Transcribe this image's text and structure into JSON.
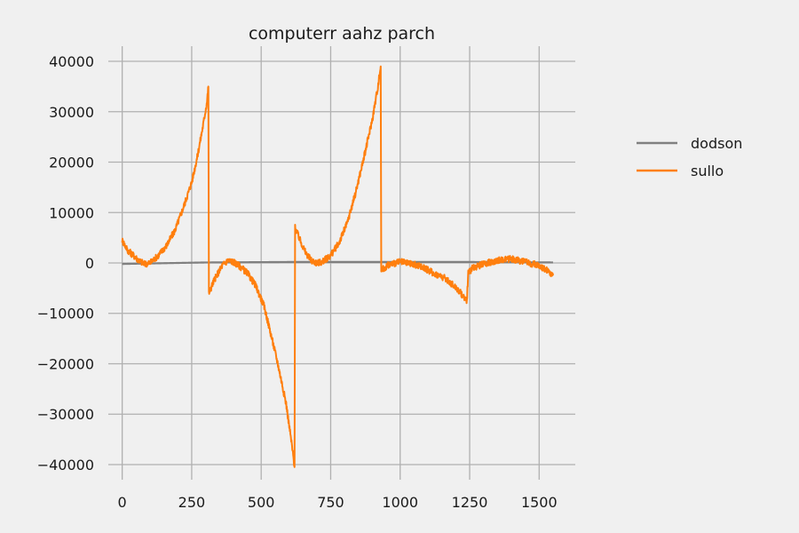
{
  "chart_data": {
    "type": "line",
    "title": "computerr aahz parch",
    "xlabel": "",
    "ylabel": "",
    "xlim": [
      -50,
      1630
    ],
    "ylim": [
      -43000,
      43000
    ],
    "xticks": [
      0,
      250,
      500,
      750,
      1000,
      1250,
      1500
    ],
    "yticks": [
      -40000,
      -30000,
      -20000,
      -10000,
      0,
      10000,
      20000,
      30000,
      40000
    ],
    "grid": true,
    "legend": {
      "placement": "right-outside-top"
    },
    "series": [
      {
        "name": "dodson",
        "color": "#808080",
        "points": [
          [
            0,
            -200
          ],
          [
            300,
            100
          ],
          [
            310,
            100
          ],
          [
            620,
            200
          ],
          [
            930,
            200
          ],
          [
            1240,
            200
          ],
          [
            1550,
            100
          ]
        ]
      },
      {
        "name": "sullo",
        "color": "#ff7f0e",
        "points": [
          [
            0,
            4500
          ],
          [
            20,
            2500
          ],
          [
            40,
            1500
          ],
          [
            60,
            500
          ],
          [
            80,
            -200
          ],
          [
            100,
            0
          ],
          [
            130,
            1500
          ],
          [
            160,
            3500
          ],
          [
            190,
            6500
          ],
          [
            220,
            11000
          ],
          [
            250,
            16000
          ],
          [
            270,
            21000
          ],
          [
            290,
            27000
          ],
          [
            305,
            32000
          ],
          [
            310,
            35000
          ],
          [
            312,
            -6000
          ],
          [
            330,
            -3500
          ],
          [
            360,
            -500
          ],
          [
            380,
            500
          ],
          [
            400,
            200
          ],
          [
            420,
            -500
          ],
          [
            450,
            -2000
          ],
          [
            480,
            -4500
          ],
          [
            510,
            -8500
          ],
          [
            530,
            -13000
          ],
          [
            560,
            -20000
          ],
          [
            590,
            -28000
          ],
          [
            610,
            -36000
          ],
          [
            620,
            -40500
          ],
          [
            622,
            7000
          ],
          [
            640,
            4500
          ],
          [
            660,
            2000
          ],
          [
            680,
            500
          ],
          [
            700,
            0
          ],
          [
            720,
            200
          ],
          [
            750,
            1500
          ],
          [
            780,
            4000
          ],
          [
            810,
            8000
          ],
          [
            840,
            14000
          ],
          [
            870,
            21000
          ],
          [
            900,
            28500
          ],
          [
            920,
            35000
          ],
          [
            930,
            39000
          ],
          [
            932,
            -1500
          ],
          [
            960,
            -300
          ],
          [
            1000,
            200
          ],
          [
            1040,
            -200
          ],
          [
            1080,
            -800
          ],
          [
            1120,
            -2000
          ],
          [
            1160,
            -3000
          ],
          [
            1200,
            -4800
          ],
          [
            1230,
            -6800
          ],
          [
            1240,
            -7500
          ],
          [
            1245,
            -2000
          ],
          [
            1260,
            -1000
          ],
          [
            1300,
            -200
          ],
          [
            1350,
            500
          ],
          [
            1400,
            800
          ],
          [
            1450,
            200
          ],
          [
            1500,
            -500
          ],
          [
            1530,
            -1500
          ],
          [
            1550,
            -2500
          ]
        ]
      }
    ]
  }
}
